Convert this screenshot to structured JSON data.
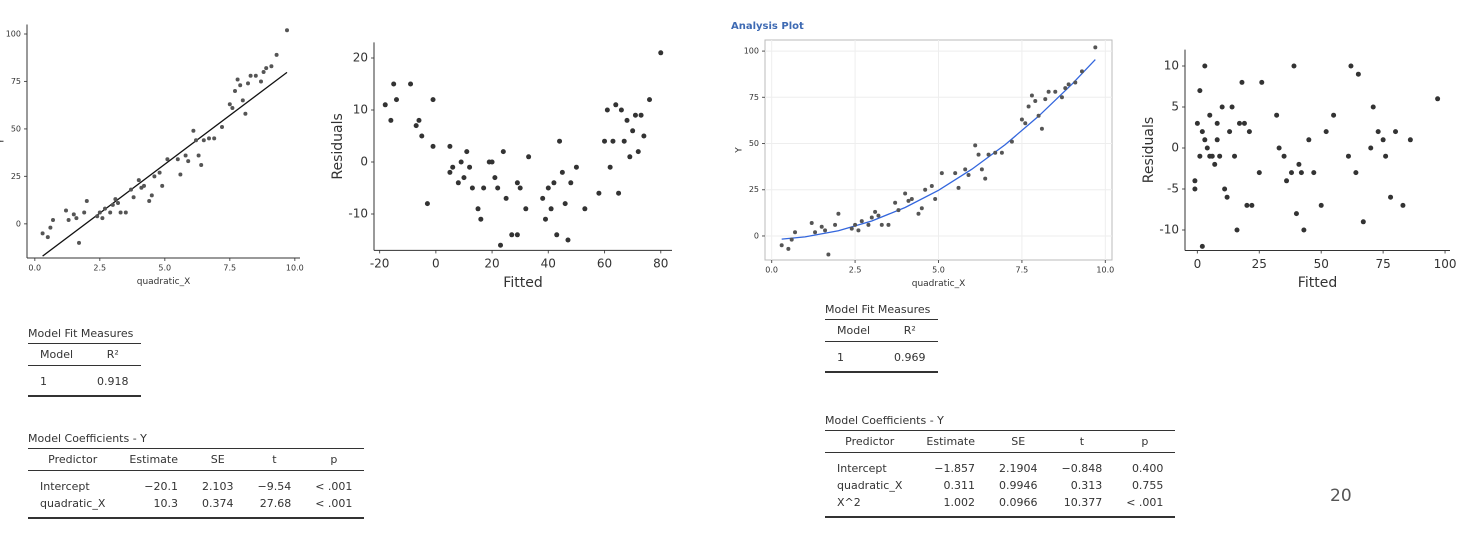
{
  "analysis_plot_label": "Analysis Plot",
  "page_number": "20",
  "chart_data": [
    {
      "type": "scatter",
      "x_label": "quadratic_X",
      "y_label": "Y",
      "xlim": [
        -0.3,
        10.2
      ],
      "ylim": [
        -18,
        105
      ],
      "xticks": [
        {
          "value": 0,
          "label": "0.0"
        },
        {
          "value": 2.5,
          "label": "2.5"
        },
        {
          "value": 5,
          "label": "5.0"
        },
        {
          "value": 7.5,
          "label": "7.5"
        },
        {
          "value": 10,
          "label": "10.0"
        }
      ],
      "yticks": [
        0,
        25,
        50,
        75,
        100
      ],
      "grid": false,
      "point_color": "#555555",
      "points": {
        "x": [
          0.3,
          0.5,
          0.6,
          0.7,
          1.2,
          1.3,
          1.5,
          1.6,
          1.7,
          1.9,
          2.0,
          2.4,
          2.5,
          2.6,
          2.7,
          2.9,
          3.0,
          3.1,
          3.2,
          3.3,
          3.5,
          3.7,
          3.8,
          4.0,
          4.1,
          4.2,
          4.4,
          4.5,
          4.6,
          4.8,
          4.9,
          5.1,
          5.5,
          5.6,
          5.8,
          5.9,
          6.1,
          6.2,
          6.3,
          6.4,
          6.5,
          6.7,
          6.9,
          7.2,
          7.5,
          7.6,
          7.7,
          7.8,
          7.9,
          8.0,
          8.1,
          8.2,
          8.3,
          8.5,
          8.7,
          8.8,
          8.9,
          9.1,
          9.3,
          9.7
        ],
        "y": [
          -5,
          -7,
          -2,
          2,
          7,
          2,
          5,
          3,
          -10,
          6,
          12,
          4,
          6,
          3,
          8,
          6,
          10,
          13,
          11,
          6,
          6,
          18,
          14,
          23,
          19,
          20,
          12,
          15,
          25,
          27,
          20,
          34,
          34,
          26,
          36,
          33,
          49,
          44,
          36,
          31,
          44,
          45,
          45,
          51,
          63,
          61,
          70,
          76,
          73,
          65,
          58,
          74,
          78,
          78,
          75,
          80,
          82,
          83,
          89,
          102
        ]
      },
      "fit_line": {
        "x": [
          0.3,
          9.7
        ],
        "y": [
          -17,
          79.8
        ],
        "color": "#111111"
      },
      "font_size": 8
    },
    {
      "type": "scatter",
      "x_label": "Fitted",
      "y_label": "Residuals",
      "xlim": [
        -22,
        84
      ],
      "ylim": [
        -17,
        23
      ],
      "xticks": [
        -20,
        0,
        20,
        40,
        60,
        80
      ],
      "yticks": [
        -10,
        0,
        10,
        20
      ],
      "grid": false,
      "point_color": "#333333",
      "points": {
        "x": [
          -18,
          -16,
          -15,
          -14,
          -9,
          -7,
          -6,
          -5,
          -3,
          -1,
          -1,
          5,
          5,
          6,
          8,
          9,
          10,
          11,
          12,
          13,
          15,
          16,
          17,
          19,
          20,
          21,
          22,
          23,
          24,
          25,
          27,
          29,
          29,
          30,
          32,
          33,
          38,
          39,
          40,
          41,
          42,
          43,
          44,
          45,
          46,
          47,
          48,
          50,
          53,
          58,
          60,
          61,
          62,
          63,
          64,
          65,
          66,
          67,
          68,
          69,
          70,
          71,
          72,
          73,
          74,
          76,
          80
        ],
        "y": [
          11,
          8,
          15,
          12,
          15,
          7,
          8,
          5,
          -8,
          12,
          3,
          3,
          -2,
          -1,
          -4,
          0,
          -3,
          2,
          -1,
          -5,
          -9,
          -11,
          -5,
          0,
          0,
          -3,
          -5,
          -16,
          2,
          -7,
          -14,
          -14,
          -4,
          -5,
          -9,
          1,
          -7,
          -11,
          -5,
          -9,
          -4,
          -14,
          4,
          -2,
          -8,
          -15,
          -4,
          -1,
          -9,
          -6,
          4,
          10,
          -1,
          4,
          11,
          -6,
          10,
          4,
          8,
          1,
          6,
          9,
          2,
          9,
          5,
          12,
          21
        ]
      },
      "font_size": 12
    },
    {
      "type": "scatter",
      "x_label": "quadratic_X",
      "y_label": "Y",
      "xlim": [
        -0.2,
        10.2
      ],
      "ylim": [
        -13,
        106
      ],
      "xticks": [
        {
          "value": 0,
          "label": "0.0"
        },
        {
          "value": 2.5,
          "label": "2.5"
        },
        {
          "value": 5,
          "label": "5.0"
        },
        {
          "value": 7.5,
          "label": "7.5"
        },
        {
          "value": 10,
          "label": "10.0"
        }
      ],
      "yticks": [
        0,
        25,
        50,
        75,
        100
      ],
      "grid": true,
      "point_color": "#555555",
      "points": {
        "x": [
          0.3,
          0.5,
          0.6,
          0.7,
          1.2,
          1.3,
          1.5,
          1.6,
          1.7,
          1.9,
          2.0,
          2.4,
          2.5,
          2.6,
          2.7,
          2.9,
          3.0,
          3.1,
          3.2,
          3.3,
          3.5,
          3.7,
          3.8,
          4.0,
          4.1,
          4.2,
          4.4,
          4.5,
          4.6,
          4.8,
          4.9,
          5.1,
          5.5,
          5.6,
          5.8,
          5.9,
          6.1,
          6.2,
          6.3,
          6.4,
          6.5,
          6.7,
          6.9,
          7.2,
          7.5,
          7.6,
          7.7,
          7.8,
          7.9,
          8.0,
          8.1,
          8.2,
          8.3,
          8.5,
          8.7,
          8.8,
          8.9,
          9.1,
          9.3,
          9.7
        ],
        "y": [
          -5,
          -7,
          -2,
          2,
          7,
          2,
          5,
          3,
          -10,
          6,
          12,
          4,
          6,
          3,
          8,
          6,
          10,
          13,
          11,
          6,
          6,
          18,
          14,
          23,
          19,
          20,
          12,
          15,
          25,
          27,
          20,
          34,
          34,
          26,
          36,
          33,
          49,
          44,
          36,
          31,
          44,
          45,
          45,
          51,
          63,
          61,
          70,
          76,
          73,
          65,
          58,
          74,
          78,
          78,
          75,
          80,
          82,
          83,
          89,
          102
        ]
      },
      "fit_line": {
        "x": [
          0.3,
          1,
          2,
          3,
          4,
          5,
          6,
          7,
          8,
          9,
          9.7
        ],
        "y": [
          -1.7,
          -0.5,
          2.8,
          8.1,
          15.4,
          24.7,
          36.1,
          49.4,
          64.8,
          82.1,
          95.4
        ],
        "color": "#3366dd"
      },
      "font_size": 8
    },
    {
      "type": "scatter",
      "x_label": "Fitted",
      "y_label": "Residuals",
      "xlim": [
        -5,
        102
      ],
      "ylim": [
        -12.5,
        12
      ],
      "xticks": [
        0,
        25,
        50,
        75,
        100
      ],
      "yticks": [
        -10,
        -5,
        0,
        5,
        10
      ],
      "grid": false,
      "point_color": "#333333",
      "points": {
        "x": [
          -1,
          -1,
          0,
          1,
          1,
          2,
          2,
          3,
          3,
          4,
          5,
          5,
          6,
          7,
          8,
          8,
          9,
          10,
          11,
          12,
          13,
          14,
          15,
          16,
          17,
          18,
          19,
          20,
          21,
          22,
          25,
          26,
          32,
          33,
          35,
          36,
          38,
          39,
          40,
          41,
          42,
          43,
          45,
          47,
          50,
          52,
          55,
          61,
          62,
          64,
          65,
          67,
          70,
          71,
          73,
          75,
          76,
          78,
          80,
          83,
          86,
          97
        ],
        "y": [
          -4,
          -5,
          3,
          7,
          -1,
          2,
          -12,
          1,
          10,
          0,
          -1,
          4,
          -1,
          -2,
          1,
          3,
          -1,
          5,
          -5,
          -6,
          2,
          5,
          -1,
          -10,
          3,
          8,
          3,
          -7,
          2,
          -7,
          -3,
          8,
          4,
          0,
          -1,
          -4,
          -3,
          10,
          -8,
          -2,
          -3,
          -10,
          1,
          -3,
          -7,
          2,
          4,
          -1,
          10,
          -3,
          9,
          -9,
          0,
          5,
          2,
          1,
          -1,
          -6,
          2,
          -7,
          1,
          6
        ]
      },
      "font_size": 12
    }
  ],
  "tables": [
    {
      "title": "Model Fit Measures",
      "columns": [
        "Model",
        "R²"
      ],
      "rows": [
        [
          "1",
          "0.918"
        ]
      ]
    },
    {
      "title": "Model Coefficients - Y",
      "columns": [
        "Predictor",
        "Estimate",
        "SE",
        "t",
        "p"
      ],
      "rows": [
        [
          "Intercept",
          "−20.1",
          "2.103",
          "−9.54",
          "< .001"
        ],
        [
          "quadratic_X",
          "10.3",
          "0.374",
          "27.68",
          "< .001"
        ]
      ]
    },
    {
      "title": "Model Fit Measures",
      "columns": [
        "Model",
        "R²"
      ],
      "rows": [
        [
          "1",
          "0.969"
        ]
      ]
    },
    {
      "title": "Model Coefficients - Y",
      "columns": [
        "Predictor",
        "Estimate",
        "SE",
        "t",
        "p"
      ],
      "rows": [
        [
          "Intercept",
          "−1.857",
          "2.1904",
          "−0.848",
          "0.400"
        ],
        [
          "quadratic_X",
          "0.311",
          "0.9946",
          "0.313",
          "0.755"
        ],
        [
          "X^2",
          "1.002",
          "0.0966",
          "10.377",
          "< .001"
        ]
      ]
    }
  ]
}
